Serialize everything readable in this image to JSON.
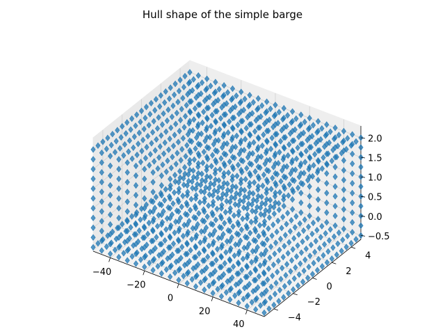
{
  "chart_data": {
    "type": "scatter",
    "subtype": "3d-scatter",
    "title": "Hull shape of the simple barge",
    "xlabel": "",
    "ylabel": "",
    "zlabel": "",
    "grid": true,
    "legend": false,
    "marker": "diamond",
    "color": "#1f77b4",
    "xlim": [
      -50,
      50
    ],
    "ylim": [
      -5,
      5
    ],
    "zlim": [
      -0.6,
      2.3
    ],
    "x_ticks": [
      -40,
      -20,
      0,
      20,
      40
    ],
    "x_tick_labels": [
      "−40",
      "−20",
      "0",
      "20",
      "40"
    ],
    "y_ticks": [
      -4,
      -2,
      0,
      2,
      4
    ],
    "y_tick_labels": [
      "−4",
      "−2",
      "0",
      "2",
      "4"
    ],
    "z_ticks": [
      -0.5,
      0.0,
      0.5,
      1.0,
      1.5,
      2.0
    ],
    "z_tick_labels": [
      "−0.5",
      "0.0",
      "0.5",
      "1.0",
      "1.5",
      "2.0"
    ],
    "hull": {
      "x_stations": [
        -50,
        -45,
        -40,
        -35,
        -30,
        -25,
        -20,
        -15,
        -10,
        -5,
        0,
        5,
        10,
        15,
        20,
        25,
        30,
        35,
        40,
        45,
        50
      ],
      "y_range": [
        -5,
        5
      ],
      "y_count": 21,
      "z_range": [
        -0.5,
        2.0
      ],
      "z_count": 11,
      "surfaces": [
        "deck z=2.0",
        "bottom z=-0.5",
        "side y=-5",
        "side y=5"
      ]
    }
  }
}
